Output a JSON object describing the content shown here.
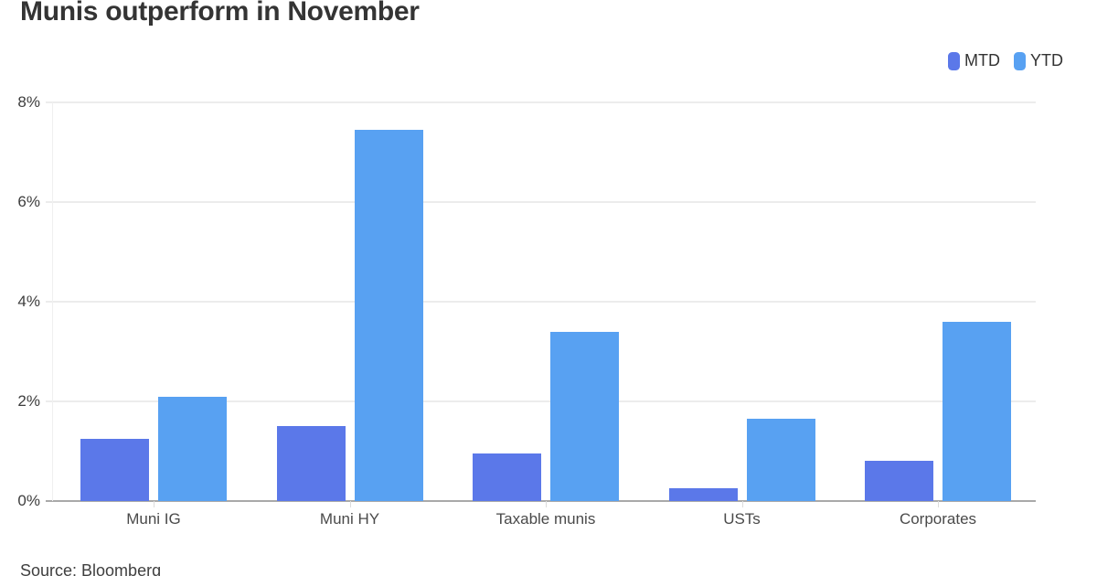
{
  "title": "Munis outperform in November",
  "source": "Source: Bloomberg",
  "legend": {
    "items": [
      {
        "label": "MTD",
        "color": "#5b78e9"
      },
      {
        "label": "YTD",
        "color": "#58a1f2"
      }
    ]
  },
  "chart_data": {
    "type": "bar",
    "title": "Munis outperform in November",
    "categories": [
      "Muni IG",
      "Muni HY",
      "Taxable munis",
      "USTs",
      "Corporates"
    ],
    "series": [
      {
        "name": "MTD",
        "color": "#5b78e9",
        "values": [
          1.25,
          1.5,
          0.95,
          0.25,
          0.8
        ]
      },
      {
        "name": "YTD",
        "color": "#58a1f2",
        "values": [
          2.1,
          7.45,
          3.4,
          1.65,
          3.6
        ]
      }
    ],
    "xlabel": "",
    "ylabel": "",
    "y_ticks": [
      "0%",
      "2%",
      "4%",
      "6%",
      "8%"
    ],
    "y_tick_values": [
      0,
      2,
      4,
      6,
      8
    ],
    "ylim": [
      0,
      8
    ],
    "grid": true,
    "legend_position": "top-right",
    "source": "Source: Bloomberg"
  }
}
